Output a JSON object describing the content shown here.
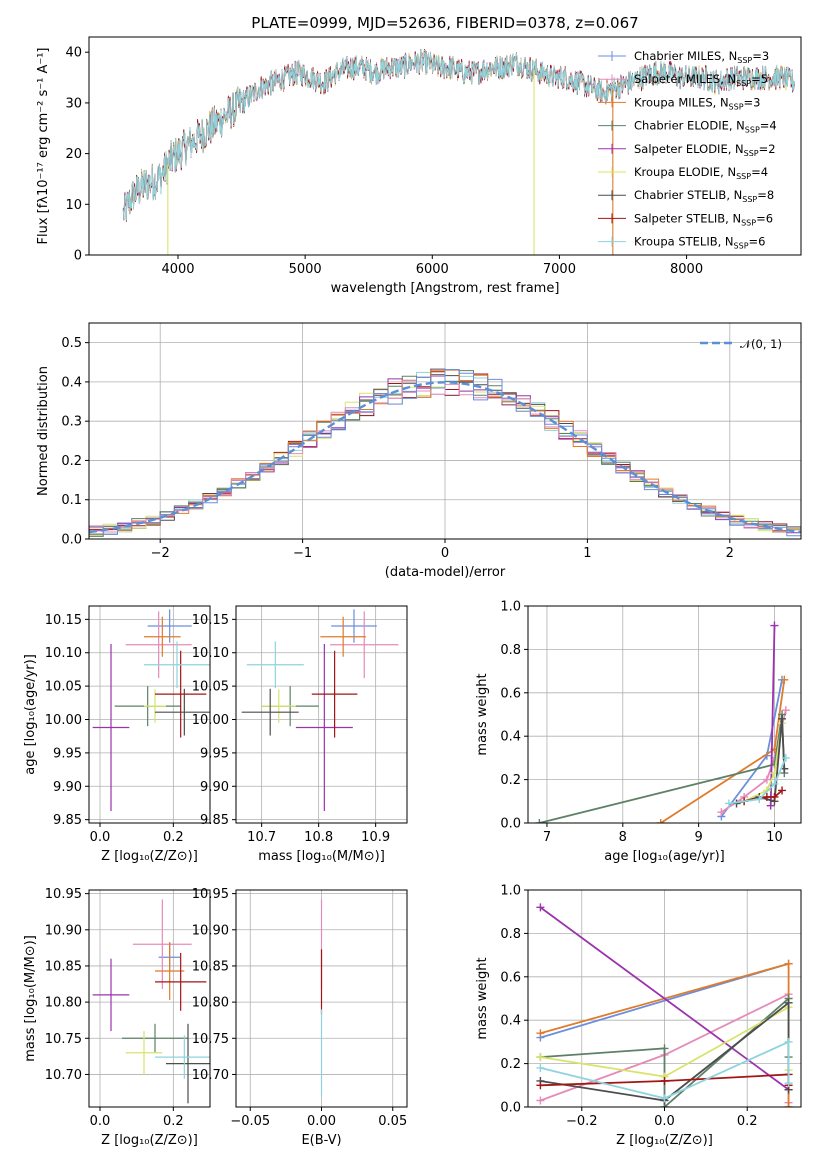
{
  "colors": [
    "#6a8fdc",
    "#e58bb9",
    "#e07b2b",
    "#5d8166",
    "#9b33ad",
    "#d8e36a",
    "#4d4d4d",
    "#a21616",
    "#8fd3dd"
  ],
  "legend": [
    {
      "text": "Chabrier MILES, N",
      "sub": "SSP",
      "val": "=3"
    },
    {
      "text": "Salpeter MILES, N",
      "sub": "SSP",
      "val": "=5"
    },
    {
      "text": "Kroupa MILES, N",
      "sub": "SSP",
      "val": "=3"
    },
    {
      "text": "Chabrier ELODIE, N",
      "sub": "SSP",
      "val": "=4"
    },
    {
      "text": "Salpeter ELODIE, N",
      "sub": "SSP",
      "val": "=2"
    },
    {
      "text": "Kroupa ELODIE, N",
      "sub": "SSP",
      "val": "=4"
    },
    {
      "text": "Chabrier STELIB, N",
      "sub": "SSP",
      "val": "=8"
    },
    {
      "text": "Salpeter STELIB, N",
      "sub": "SSP",
      "val": "=6"
    },
    {
      "text": "Kroupa STELIB, N",
      "sub": "SSP",
      "val": "=6"
    }
  ],
  "chart_data": [
    {
      "type": "line",
      "title": "PLATE=0999, MJD=52636, FIBERID=0378, z=0.067",
      "xlabel": "wavelength [Angstrom, rest frame]",
      "ylabel": "Flux [fλ10⁻¹⁷ erg cm⁻² s⁻¹ A⁻¹]",
      "xlim": [
        3300,
        8900
      ],
      "ylim": [
        0,
        43
      ],
      "xticks": [
        4000,
        5000,
        6000,
        7000,
        8000
      ],
      "yticks": [
        0,
        10,
        20,
        30,
        40
      ],
      "spectrum": {
        "x": [
          3570,
          3650,
          3750,
          3850,
          3950,
          4050,
          4150,
          4250,
          4350,
          4450,
          4550,
          4650,
          4750,
          4850,
          4950,
          5050,
          5150,
          5250,
          5350,
          5450,
          5550,
          5650,
          5750,
          5850,
          5950,
          6050,
          6150,
          6250,
          6350,
          6450,
          6550,
          6650,
          6750,
          6850,
          6950,
          7050,
          7150,
          7250,
          7350,
          7450,
          7550,
          7650,
          7750,
          7850,
          7950,
          8050,
          8150,
          8250,
          8350,
          8450,
          8550,
          8650,
          8750,
          8850
        ],
        "y": [
          8,
          12,
          14,
          15,
          19,
          21,
          23,
          25,
          27,
          29,
          31,
          33,
          34,
          35,
          36,
          35,
          34,
          36,
          37,
          37,
          36,
          37,
          37,
          38,
          38,
          37,
          37,
          36,
          36,
          37,
          37,
          38,
          37,
          36,
          35,
          35,
          34,
          33,
          32,
          33,
          34,
          35,
          36,
          36,
          35,
          35,
          35,
          34,
          35,
          35,
          35,
          35,
          35,
          34
        ]
      },
      "dips": [
        {
          "x": 6800,
          "y": 0
        },
        {
          "x": 7420,
          "y": 0
        },
        {
          "x": 3920,
          "y": 0
        }
      ]
    },
    {
      "type": "bar",
      "xlabel": "(data-model)/error",
      "ylabel": "Normed distribution",
      "xlim": [
        -2.5,
        2.5
      ],
      "ylim": [
        0,
        0.55
      ],
      "xticks": [
        -2,
        -1,
        0,
        1,
        2
      ],
      "yticks": [
        0.0,
        0.1,
        0.2,
        0.3,
        0.4,
        0.5
      ],
      "bin_width": 0.1,
      "legend": "𝒩(0, 1)",
      "normal": {
        "mu": 0,
        "sigma": 1
      }
    },
    {
      "type": "scatter",
      "xlabel": "Z [log₁₀(Z/Z⊙)]",
      "ylabel": "age  [log₁₀(age/yr)]",
      "xlim": [
        -0.03,
        0.3
      ],
      "ylim": [
        9.845,
        10.17
      ],
      "xticks": [
        0.0,
        0.2
      ],
      "yticks": [
        9.85,
        9.9,
        9.95,
        10.0,
        10.05,
        10.1,
        10.15
      ],
      "points": [
        {
          "x": 0.19,
          "y": 10.14,
          "xerr": 0.06,
          "yerr": 0.025
        },
        {
          "x": 0.16,
          "y": 10.112,
          "xerr": 0.09,
          "yerr": 0.05
        },
        {
          "x": 0.17,
          "y": 10.124,
          "xerr": 0.05,
          "yerr": 0.03
        },
        {
          "x": 0.13,
          "y": 10.02,
          "xerr": 0.09,
          "yerr": 0.03
        },
        {
          "x": 0.03,
          "y": 9.988,
          "xerr": 0.05,
          "yerr": 0.125
        },
        {
          "x": 0.15,
          "y": 10.02,
          "xerr": 0.03,
          "yerr": 0.025
        },
        {
          "x": 0.23,
          "y": 10.011,
          "xerr": 0.08,
          "yerr": 0.035
        },
        {
          "x": 0.22,
          "y": 10.038,
          "xerr": 0.07,
          "yerr": 0.065
        },
        {
          "x": 0.21,
          "y": 10.082,
          "xerr": 0.09,
          "yerr": 0.035
        }
      ]
    },
    {
      "type": "scatter",
      "xlabel": "mass [log₁₀(M/M⊙)]",
      "ylabel": "",
      "xlim": [
        10.655,
        10.955
      ],
      "ylim": [
        9.845,
        10.17
      ],
      "xticks": [
        10.7,
        10.8,
        10.9
      ],
      "yticks": [
        9.85,
        9.9,
        9.95,
        10.0,
        10.05,
        10.1,
        10.15
      ],
      "points": [
        {
          "x": 10.862,
          "y": 10.14,
          "xerr": 0.04,
          "yerr": 0.025
        },
        {
          "x": 10.88,
          "y": 10.112,
          "xerr": 0.06,
          "yerr": 0.05
        },
        {
          "x": 10.843,
          "y": 10.124,
          "xerr": 0.04,
          "yerr": 0.03
        },
        {
          "x": 10.75,
          "y": 10.02,
          "xerr": 0.05,
          "yerr": 0.03
        },
        {
          "x": 10.81,
          "y": 9.988,
          "xerr": 0.05,
          "yerr": 0.125
        },
        {
          "x": 10.73,
          "y": 10.02,
          "xerr": 0.03,
          "yerr": 0.025
        },
        {
          "x": 10.715,
          "y": 10.011,
          "xerr": 0.05,
          "yerr": 0.035
        },
        {
          "x": 10.828,
          "y": 10.038,
          "xerr": 0.04,
          "yerr": 0.065
        },
        {
          "x": 10.724,
          "y": 10.082,
          "xerr": 0.05,
          "yerr": 0.035
        }
      ]
    },
    {
      "type": "line",
      "xlabel": "age  [log₁₀(age/yr)]",
      "ylabel": "mass weight",
      "xlim": [
        6.75,
        10.35
      ],
      "ylim": [
        0,
        1
      ],
      "xticks": [
        7,
        8,
        9,
        10
      ],
      "yticks": [
        0.0,
        0.2,
        0.4,
        0.6,
        0.8,
        1.0
      ],
      "series": [
        {
          "x": [
            9.3,
            9.9,
            10.1
          ],
          "y": [
            0.03,
            0.31,
            0.66
          ]
        },
        {
          "x": [
            9.3,
            9.6,
            9.9,
            10.0,
            10.15
          ],
          "y": [
            0.05,
            0.12,
            0.2,
            0.3,
            0.52
          ]
        },
        {
          "x": [
            8.5,
            10.0,
            10.13
          ],
          "y": [
            0.0,
            0.34,
            0.66
          ]
        },
        {
          "x": [
            6.9,
            10.0,
            10.1,
            10.13
          ],
          "y": [
            0.0,
            0.27,
            0.5,
            0.23
          ]
        },
        {
          "x": [
            9.95,
            10.0
          ],
          "y": [
            0.08,
            0.91
          ]
        },
        {
          "x": [
            9.6,
            9.9,
            10.0,
            10.1
          ],
          "y": [
            0.1,
            0.15,
            0.23,
            0.46
          ]
        },
        {
          "x": [
            9.5,
            9.8,
            10.0,
            10.1,
            10.13
          ],
          "y": [
            0.09,
            0.12,
            0.1,
            0.48,
            0.25
          ]
        },
        {
          "x": [
            9.6,
            9.9,
            10.0,
            10.1
          ],
          "y": [
            0.1,
            0.12,
            0.12,
            0.15
          ]
        },
        {
          "x": [
            9.4,
            9.8,
            10.0,
            10.15
          ],
          "y": [
            0.09,
            0.11,
            0.18,
            0.3
          ]
        }
      ]
    },
    {
      "type": "scatter",
      "xlabel": "Z [log₁₀(Z/Z⊙)]",
      "ylabel": "mass [log₁₀(M/M⊙)]",
      "xlim": [
        -0.03,
        0.3
      ],
      "ylim": [
        10.655,
        10.955
      ],
      "xticks": [
        0.0,
        0.2
      ],
      "yticks": [
        10.7,
        10.75,
        10.8,
        10.85,
        10.9,
        10.95
      ],
      "points": [
        {
          "x": 0.19,
          "y": 10.862,
          "xerr": 0.03,
          "yerr": 0.02
        },
        {
          "x": 0.17,
          "y": 10.88,
          "xerr": 0.08,
          "yerr": 0.062
        },
        {
          "x": 0.19,
          "y": 10.843,
          "xerr": 0.04,
          "yerr": 0.04
        },
        {
          "x": 0.15,
          "y": 10.75,
          "xerr": 0.09,
          "yerr": 0.02
        },
        {
          "x": 0.03,
          "y": 10.81,
          "xerr": 0.05,
          "yerr": 0.05
        },
        {
          "x": 0.12,
          "y": 10.73,
          "xerr": 0.05,
          "yerr": 0.03
        },
        {
          "x": 0.24,
          "y": 10.715,
          "xerr": 0.06,
          "yerr": 0.055
        },
        {
          "x": 0.22,
          "y": 10.828,
          "xerr": 0.07,
          "yerr": 0.04
        },
        {
          "x": 0.23,
          "y": 10.724,
          "xerr": 0.08,
          "yerr": 0.03
        }
      ]
    },
    {
      "type": "scatter",
      "xlabel": "E(B-V)",
      "ylabel": "",
      "xlim": [
        -0.06,
        0.06
      ],
      "ylim": [
        10.655,
        10.955
      ],
      "xticks": [
        -0.05,
        0.0,
        0.05
      ],
      "yticks": [
        10.7,
        10.75,
        10.8,
        10.85,
        10.9,
        10.95
      ],
      "points": [
        {
          "x": 0,
          "y": 10.88,
          "xerr": 0,
          "yerr": 0.062
        },
        {
          "x": 0,
          "y": 10.828,
          "xerr": 0,
          "yerr": 0.045
        },
        {
          "x": 0,
          "y": 10.73,
          "xerr": 0,
          "yerr": 0.06
        }
      ]
    },
    {
      "type": "line",
      "xlabel": "Z [log₁₀(Z/Z⊙)]",
      "ylabel": "mass weight",
      "xlim": [
        -0.33,
        0.33
      ],
      "ylim": [
        0,
        1
      ],
      "xticks": [
        -0.2,
        0.0,
        0.2
      ],
      "yticks": [
        0.0,
        0.2,
        0.4,
        0.6,
        0.8,
        1.0
      ],
      "series": [
        {
          "x": [
            -0.3,
            0.3
          ],
          "y": [
            0.32,
            0.66
          ]
        },
        {
          "x": [
            -0.3,
            0.0,
            0.3,
            0.3
          ],
          "y": [
            0.03,
            0.24,
            0.52,
            0.02
          ]
        },
        {
          "x": [
            -0.3,
            0.3,
            0.3
          ],
          "y": [
            0.34,
            0.66,
            0.0
          ]
        },
        {
          "x": [
            -0.3,
            0.0,
            0.0,
            0.3,
            0.3
          ],
          "y": [
            0.23,
            0.27,
            0.0,
            0.5,
            0.23
          ]
        },
        {
          "x": [
            -0.3,
            0.3
          ],
          "y": [
            0.92,
            0.08
          ]
        },
        {
          "x": [
            -0.3,
            0.0,
            0.3,
            0.3
          ],
          "y": [
            0.23,
            0.14,
            0.46,
            0.17
          ]
        },
        {
          "x": [
            -0.3,
            0.0,
            0.3,
            0.3
          ],
          "y": [
            0.12,
            0.03,
            0.48,
            0.08
          ]
        },
        {
          "x": [
            -0.3,
            0.0,
            0.3,
            0.3
          ],
          "y": [
            0.1,
            0.12,
            0.15,
            0.1
          ]
        },
        {
          "x": [
            -0.3,
            0.0,
            0.3,
            0.3
          ],
          "y": [
            0.18,
            0.04,
            0.3,
            0.11
          ]
        }
      ]
    }
  ]
}
